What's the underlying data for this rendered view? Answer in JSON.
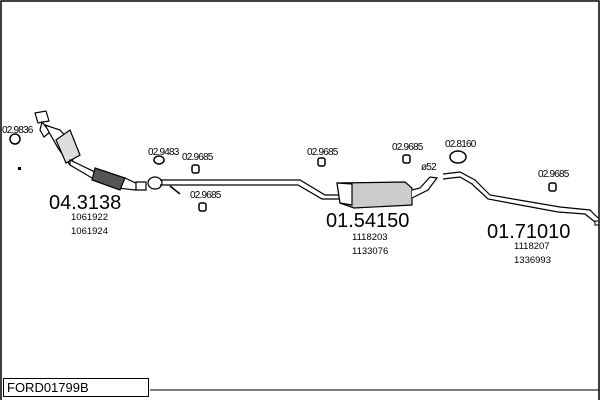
{
  "diagram_code": "FORD01799B",
  "parts": [
    {
      "number": "04.3138",
      "refs": [
        "1061922",
        "1061924"
      ]
    },
    {
      "number": "01.54150",
      "refs": [
        "1118203",
        "1133076"
      ]
    },
    {
      "number": "01.71010",
      "refs": [
        "1118207",
        "1336993"
      ]
    }
  ],
  "fittings": [
    "02.9836",
    "02.9483",
    "02.9685",
    "02.9685",
    "02.9685",
    "02.9685",
    "02.8160",
    "02.9685"
  ],
  "pipe_size": "ø52"
}
